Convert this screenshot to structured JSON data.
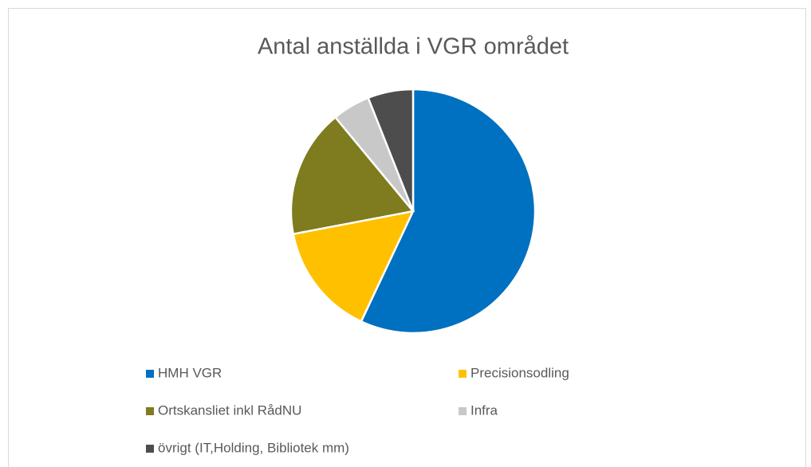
{
  "chart_data": {
    "type": "pie",
    "title": "Antal anställda i VGR området",
    "categories": [
      "HMH VGR",
      "Precisionsodling",
      "Ortskansliet inkl RådNU",
      "Infra",
      "övrigt (IT,Holding, Bibliotek mm)"
    ],
    "values": [
      57,
      15,
      17,
      5,
      6
    ],
    "colors": [
      "#0070c0",
      "#ffc000",
      "#7f7b1f",
      "#c8c8c8",
      "#4d4d4d"
    ],
    "legend": "bottom"
  }
}
